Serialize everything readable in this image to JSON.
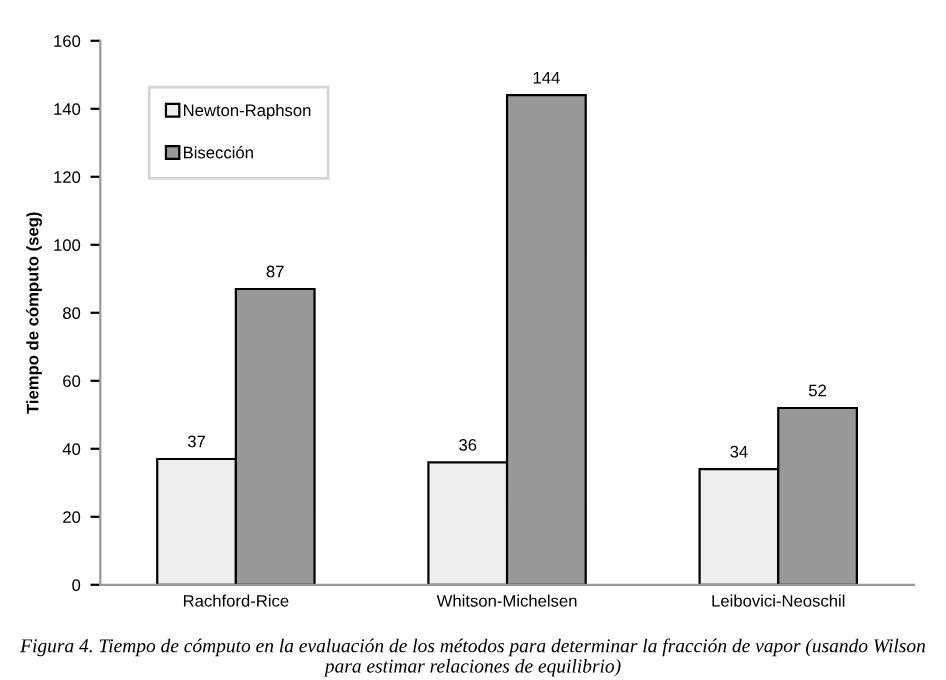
{
  "chart_data": {
    "type": "bar",
    "ylabel": "Tiempo de cómputo (seg)",
    "categories": [
      "Rachford-Rice",
      "Whitson-Michelsen",
      "Leibovici-Neoschil"
    ],
    "series": [
      {
        "name": "Newton-Raphson",
        "color": "#eeeeee",
        "values": [
          37,
          36,
          34
        ]
      },
      {
        "name": "Bisección",
        "color": "#999999",
        "values": [
          87,
          144,
          52
        ]
      }
    ],
    "ylim": [
      0,
      160
    ],
    "yticks": [
      0,
      20,
      40,
      60,
      80,
      100,
      120,
      140,
      160
    ],
    "grid": false,
    "legend": "top left",
    "data_labels": true,
    "annotations": [
      "Figura 4. Tiempo de cómputo en la evaluación de los métodos para determinar la fracción de vapor (usando Wilson para estimar relaciones de equilibrio)"
    ]
  }
}
